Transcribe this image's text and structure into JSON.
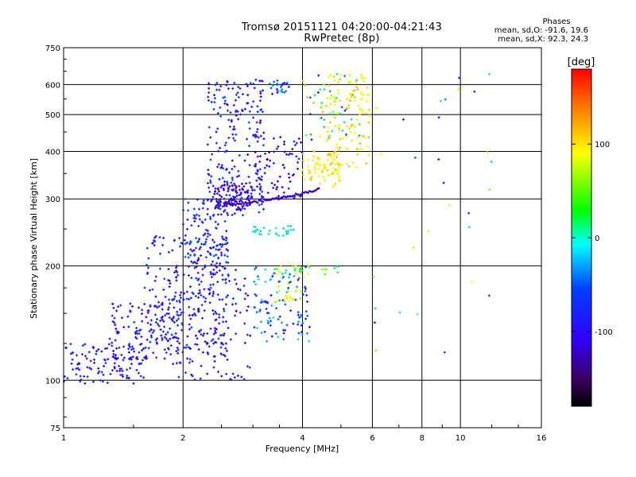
{
  "title": "Tromsø 20151121 04:20:00-04:21:43",
  "subtitle": "RwPretec (8p)",
  "stats": {
    "heading": "Phases",
    "line_o": "mean, sd,O: -91.6, 19.6",
    "line_x": "mean, sd,X:  92.3, 24.3"
  },
  "colorbar": {
    "label": "[deg]",
    "ticks": [
      {
        "value": 100,
        "label": "100"
      },
      {
        "value": 0,
        "label": "0"
      },
      {
        "value": -100,
        "label": "-100"
      }
    ],
    "range": [
      -180,
      180
    ]
  },
  "chart_data": {
    "type": "scatter",
    "xlabel": "Frequency [MHz]",
    "ylabel": "Stationary phase Virtual Height [km]",
    "x_scale": "log",
    "y_scale": "log",
    "xlim": [
      1,
      16
    ],
    "ylim": [
      75,
      750
    ],
    "grid": true,
    "x_ticks": [
      {
        "value": 1,
        "label": "1"
      },
      {
        "value": 2,
        "label": "2"
      },
      {
        "value": 4,
        "label": "4"
      },
      {
        "value": 6,
        "label": "6"
      },
      {
        "value": 8,
        "label": "8"
      },
      {
        "value": 10,
        "label": "10"
      },
      {
        "value": 16,
        "label": "16"
      }
    ],
    "y_ticks": [
      {
        "value": 75,
        "label": "75"
      },
      {
        "value": 100,
        "label": "100"
      },
      {
        "value": 200,
        "label": "200"
      },
      {
        "value": 300,
        "label": "300"
      },
      {
        "value": 400,
        "label": "400"
      },
      {
        "value": 500,
        "label": "500"
      },
      {
        "value": 600,
        "label": "600"
      },
      {
        "value": 750,
        "label": "750"
      }
    ],
    "point_groups": [
      {
        "freq": [
          1.0,
          1.6
        ],
        "height": [
          98,
          125
        ],
        "phase": [
          -110,
          -85
        ],
        "count": 110
      },
      {
        "freq": [
          1.3,
          2.0
        ],
        "height": [
          110,
          160
        ],
        "phase": [
          -115,
          -85
        ],
        "count": 140
      },
      {
        "freq": [
          1.6,
          2.6
        ],
        "height": [
          120,
          240
        ],
        "phase": [
          -115,
          -80
        ],
        "count": 200
      },
      {
        "freq": [
          1.9,
          3.0
        ],
        "height": [
          100,
          200
        ],
        "phase": [
          -115,
          -80
        ],
        "count": 150
      },
      {
        "freq": [
          2.0,
          2.6
        ],
        "height": [
          200,
          300
        ],
        "phase": [
          -110,
          -70
        ],
        "count": 110
      },
      {
        "freq": [
          2.3,
          3.2
        ],
        "height": [
          270,
          620
        ],
        "phase": [
          -115,
          -75
        ],
        "count": 220
      },
      {
        "freq": [
          2.4,
          3.0
        ],
        "height": [
          280,
          330
        ],
        "phase": [
          -140,
          -100
        ],
        "count": 90
      },
      {
        "freq": [
          3.0,
          4.0
        ],
        "height": [
          300,
          450
        ],
        "phase": [
          -140,
          -80
        ],
        "count": 80
      },
      {
        "freq": [
          3.0,
          4.2
        ],
        "height": [
          125,
          200
        ],
        "phase": [
          -115,
          -20
        ],
        "count": 110
      },
      {
        "freq": [
          3.4,
          4.0
        ],
        "height": [
          160,
          180
        ],
        "phase": [
          50,
          100
        ],
        "count": 20
      },
      {
        "freq": [
          4.0,
          5.0
        ],
        "height": [
          320,
          400
        ],
        "phase": [
          85,
          130
        ],
        "count": 80
      },
      {
        "freq": [
          4.6,
          5.9
        ],
        "height": [
          360,
          640
        ],
        "phase": [
          70,
          130
        ],
        "count": 110
      },
      {
        "freq": [
          3.4,
          5.0
        ],
        "height": [
          190,
          200
        ],
        "phase": [
          -20,
          110
        ],
        "count": 30
      },
      {
        "freq": [
          3.0,
          3.8
        ],
        "height": [
          240,
          255
        ],
        "phase": [
          -40,
          -10
        ],
        "count": 30
      },
      {
        "freq": [
          4.0,
          5.6
        ],
        "height": [
          420,
          640
        ],
        "phase": [
          -110,
          130
        ],
        "count": 60
      },
      {
        "freq": [
          3.3,
          3.7
        ],
        "height": [
          565,
          615
        ],
        "phase": [
          -110,
          -40
        ],
        "count": 25
      },
      {
        "freq": [
          6.0,
          12.0
        ],
        "height": [
          115,
          640
        ],
        "phase": [
          -110,
          100
        ],
        "count": 30
      }
    ],
    "trace": {
      "freq_start": 2.55,
      "freq_end": 4.4,
      "height_start": 290,
      "height_end": 318,
      "phase": [
        -140,
        -110
      ]
    }
  }
}
